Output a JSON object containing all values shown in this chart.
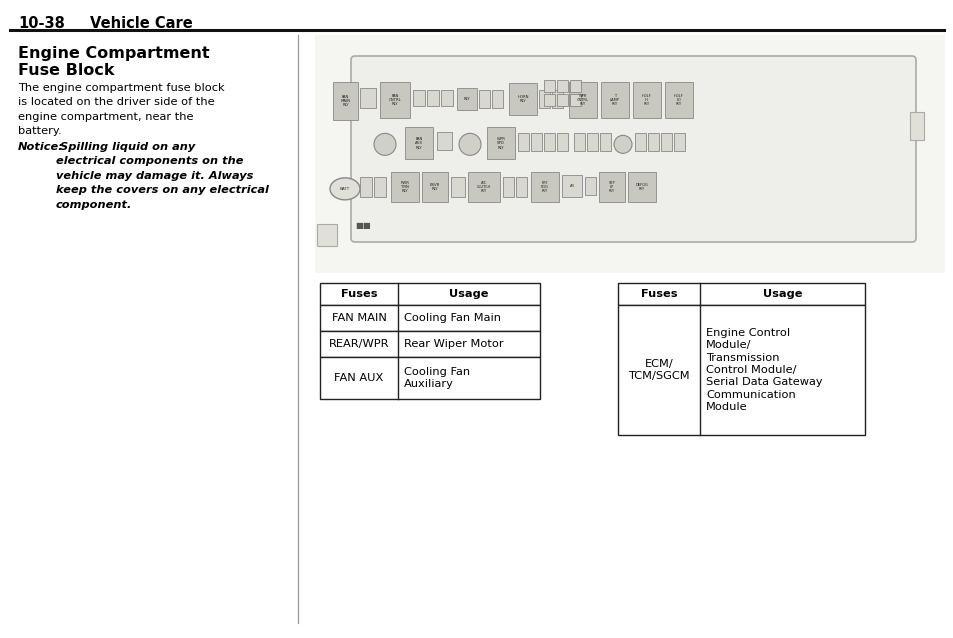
{
  "page_header_num": "10-38",
  "page_header_title": "Vehicle Care",
  "section_title_line1": "Engine Compartment",
  "section_title_line2": "Fuse Block",
  "body_text": "The engine compartment fuse block\nis located on the driver side of the\nengine compartment, near the\nbattery.",
  "notice_label": "Notice:",
  "notice_text": " Spilling liquid on any\nelectrical components on the\nvehicle may damage it. Always\nkeep the covers on any electrical\ncomponent.",
  "table1_headers": [
    "Fuses",
    "Usage"
  ],
  "table1_rows": [
    [
      "FAN MAIN",
      "Cooling Fan Main"
    ],
    [
      "REAR/WPR",
      "Rear Wiper Motor"
    ],
    [
      "FAN AUX",
      "Cooling Fan\nAuxiliary"
    ]
  ],
  "table2_headers": [
    "Fuses",
    "Usage"
  ],
  "table2_rows": [
    [
      "ECM/\nTCM/SGCM",
      "Engine Control\nModule/\nTransmission\nControl Module/\nSerial Data Gateway\nCommunication\nModule"
    ]
  ],
  "bg_color": "#ffffff",
  "text_color": "#000000",
  "divider_color": "#999999",
  "table_border_color": "#222222",
  "fuse_body_color": "#e8e8e2",
  "fuse_box_color": "#d8d8d0",
  "relay_box_color": "#c8c8c0",
  "fuse_border_color": "#888888"
}
